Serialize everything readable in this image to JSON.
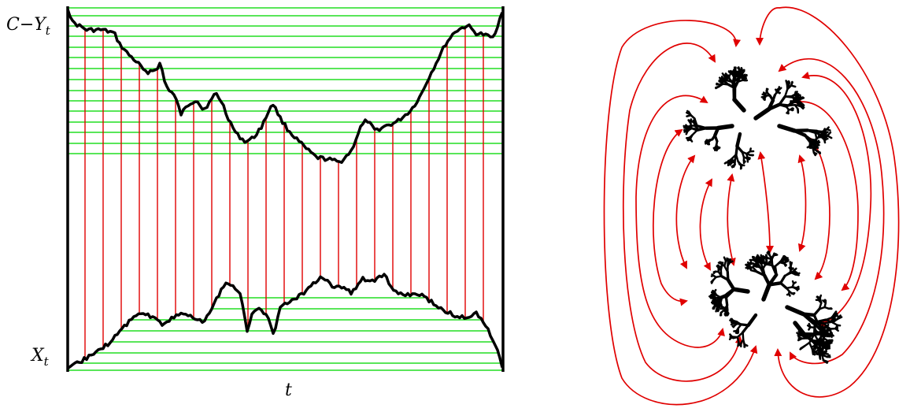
{
  "left_diagram": {
    "label_top": "C−Y",
    "label_top_sub": "t",
    "label_bottom": "X",
    "label_bottom_sub": "t",
    "axis_label": "t",
    "colors": {
      "vertical_lines": "#e00000",
      "horizontal_lines": "#22dd22",
      "curves": "#000000",
      "frame": "#000000"
    }
  },
  "right_diagram": {
    "colors": {
      "arrows": "#e00000",
      "trees": "#000000"
    }
  }
}
